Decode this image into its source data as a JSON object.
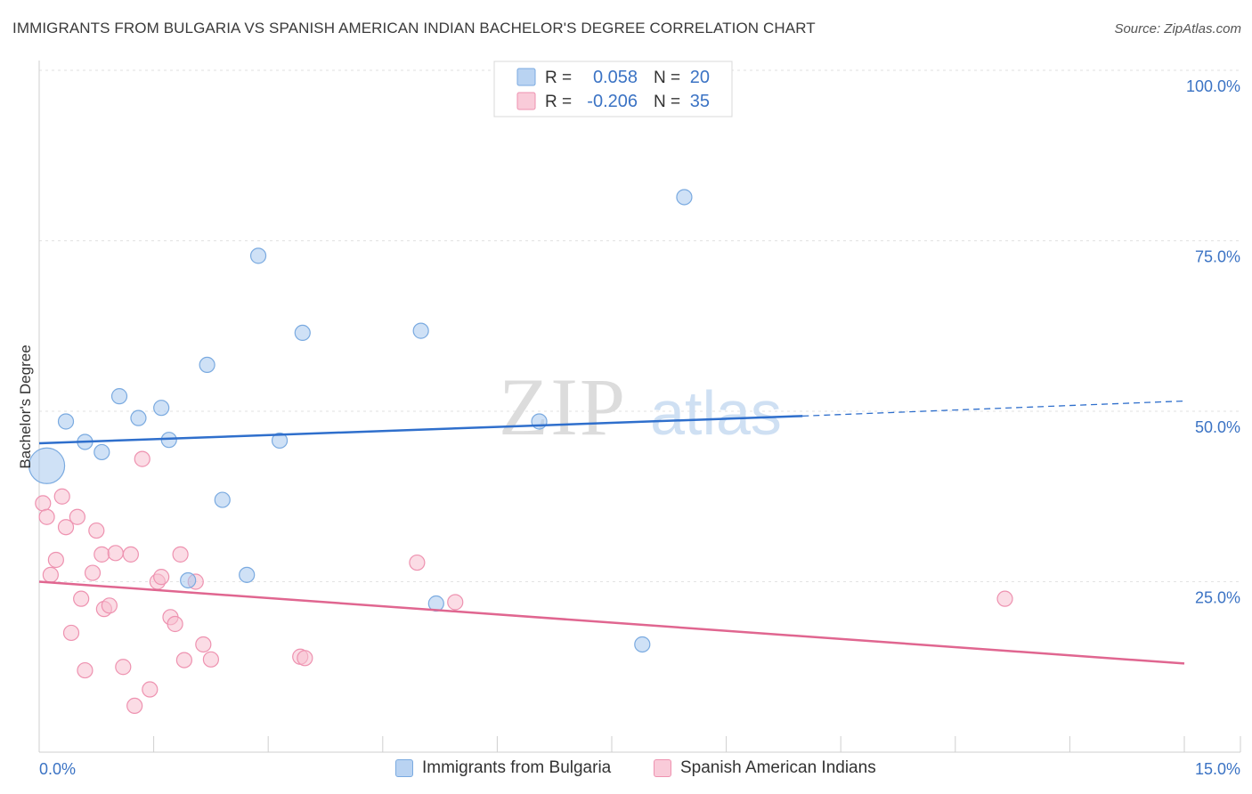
{
  "title": "IMMIGRANTS FROM BULGARIA VS SPANISH AMERICAN INDIAN BACHELOR'S DEGREE CORRELATION CHART",
  "source": "Source: ZipAtlas.com",
  "watermark": {
    "zip": "ZIP",
    "atlas": "atlas"
  },
  "legend_top": [
    {
      "r_label": "R =",
      "r_value": "0.058",
      "n_label": "N =",
      "n_value": "20"
    },
    {
      "r_label": "R =",
      "r_value": "-0.206",
      "n_label": "N =",
      "n_value": "35"
    }
  ],
  "chart_data": {
    "type": "scatter",
    "xlabel": "",
    "ylabel": "Bachelor's Degree",
    "xlim": [
      0,
      15
    ],
    "ylim": [
      0,
      100
    ],
    "x_tick_labels": [
      "0.0%",
      "15.0%"
    ],
    "y_ticks": [
      25,
      50,
      75,
      100
    ],
    "y_tick_labels": [
      "25.0%",
      "50.0%",
      "75.0%",
      "100.0%"
    ],
    "grid": true,
    "legend_position": "bottom",
    "series": [
      {
        "name": "Immigrants from Bulgaria",
        "color": "#a8c8ef",
        "stroke": "#7aaae0",
        "line_color": "#2f6fcc",
        "r": 0.058,
        "n": 20,
        "trend": {
          "x0": 0,
          "y0": 45.3,
          "x1": 10.0,
          "y1": 49.3,
          "dash_to_x": 15.0,
          "dash_y": 51.5
        },
        "points": [
          {
            "x": 0.1,
            "y": 42.0,
            "big": true
          },
          {
            "x": 0.35,
            "y": 48.5
          },
          {
            "x": 0.6,
            "y": 45.5
          },
          {
            "x": 0.82,
            "y": 44.0
          },
          {
            "x": 1.05,
            "y": 52.2
          },
          {
            "x": 1.3,
            "y": 49.0
          },
          {
            "x": 1.6,
            "y": 50.5
          },
          {
            "x": 1.7,
            "y": 45.8
          },
          {
            "x": 1.95,
            "y": 25.2
          },
          {
            "x": 2.2,
            "y": 56.8
          },
          {
            "x": 2.4,
            "y": 37.0
          },
          {
            "x": 2.72,
            "y": 26.0
          },
          {
            "x": 2.87,
            "y": 72.8
          },
          {
            "x": 3.15,
            "y": 45.7
          },
          {
            "x": 3.45,
            "y": 61.5
          },
          {
            "x": 5.0,
            "y": 61.8
          },
          {
            "x": 5.2,
            "y": 21.8
          },
          {
            "x": 6.55,
            "y": 48.5
          },
          {
            "x": 7.9,
            "y": 15.8
          },
          {
            "x": 8.45,
            "y": 81.4
          }
        ]
      },
      {
        "name": "Spanish American Indians",
        "color": "#f7bfd0",
        "stroke": "#ee92b0",
        "line_color": "#e06690",
        "r": -0.206,
        "n": 35,
        "trend": {
          "x0": 0,
          "y0": 25.0,
          "x1": 15.0,
          "y1": 13.0
        },
        "points": [
          {
            "x": 0.05,
            "y": 36.5
          },
          {
            "x": 0.1,
            "y": 34.5
          },
          {
            "x": 0.15,
            "y": 26.0
          },
          {
            "x": 0.22,
            "y": 28.2
          },
          {
            "x": 0.3,
            "y": 37.5
          },
          {
            "x": 0.35,
            "y": 33.0
          },
          {
            "x": 0.42,
            "y": 17.5
          },
          {
            "x": 0.5,
            "y": 34.5
          },
          {
            "x": 0.55,
            "y": 22.5
          },
          {
            "x": 0.6,
            "y": 12.0
          },
          {
            "x": 0.7,
            "y": 26.3
          },
          {
            "x": 0.75,
            "y": 32.5
          },
          {
            "x": 0.82,
            "y": 29.0
          },
          {
            "x": 0.85,
            "y": 21.0
          },
          {
            "x": 0.92,
            "y": 21.5
          },
          {
            "x": 1.0,
            "y": 29.2
          },
          {
            "x": 1.1,
            "y": 12.5
          },
          {
            "x": 1.2,
            "y": 29.0
          },
          {
            "x": 1.25,
            "y": 6.8
          },
          {
            "x": 1.35,
            "y": 43.0
          },
          {
            "x": 1.45,
            "y": 9.2
          },
          {
            "x": 1.55,
            "y": 25.0
          },
          {
            "x": 1.6,
            "y": 25.7
          },
          {
            "x": 1.72,
            "y": 19.8
          },
          {
            "x": 1.78,
            "y": 18.8
          },
          {
            "x": 1.85,
            "y": 29.0
          },
          {
            "x": 1.9,
            "y": 13.5
          },
          {
            "x": 2.05,
            "y": 25.0
          },
          {
            "x": 2.15,
            "y": 15.8
          },
          {
            "x": 2.25,
            "y": 13.6
          },
          {
            "x": 3.42,
            "y": 14.0
          },
          {
            "x": 3.48,
            "y": 13.8
          },
          {
            "x": 4.95,
            "y": 27.8
          },
          {
            "x": 5.45,
            "y": 22.0
          },
          {
            "x": 12.65,
            "y": 22.5
          }
        ]
      }
    ]
  }
}
